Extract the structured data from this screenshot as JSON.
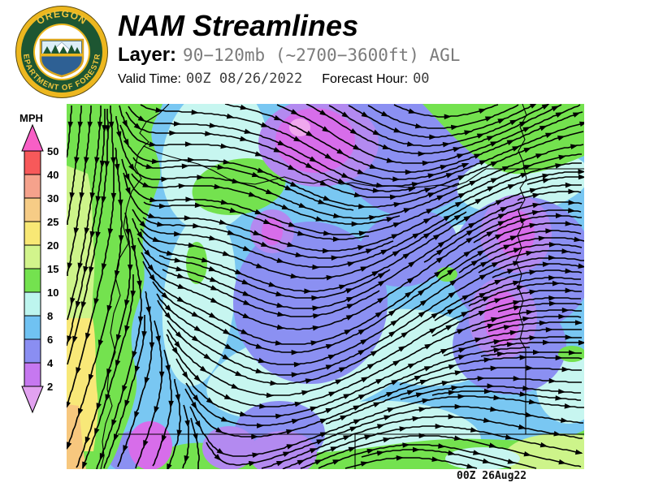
{
  "header": {
    "logo": {
      "top_text": "OREGON",
      "bottom_text": "DEPARTMENT OF FORESTRY"
    },
    "title": "NAM Streamlines",
    "layer_label": "Layer:",
    "layer_value": "90−120mb (~2700−3600ft) AGL",
    "valid_time_label": "Valid Time:",
    "valid_time_value": "00Z 08/26/2022",
    "forecast_hour_label": "Forecast Hour:",
    "forecast_hour_value": "00"
  },
  "colorbar": {
    "unit": "MPH",
    "ticks": [
      "50",
      "40",
      "30",
      "25",
      "20",
      "15",
      "10",
      "8",
      "6",
      "4",
      "2"
    ],
    "segment_colors": [
      "#f7595a",
      "#f5a28c",
      "#f6cc86",
      "#f8e875",
      "#d2f48c",
      "#74e24f",
      "#bdf5ee",
      "#70c2f2",
      "#8a8ef2",
      "#c678f0"
    ],
    "arrow_top_color": "#f85fc6",
    "arrow_bottom_color": "#e2a2f0"
  },
  "map": {
    "timestamp": "00Z 26Aug22",
    "palette": {
      "green": "#74e24f",
      "pale_green": "#cdf48a",
      "yellow": "#f8e878",
      "peach": "#f7c77e",
      "pale_cyan": "#c7f6f0",
      "sky_blue": "#79c7f2",
      "periwinkle": "#8b90f2",
      "violet": "#b38af0",
      "magenta": "#d76dea",
      "pink": "#f0a8ee",
      "line_color": "#000000"
    }
  }
}
